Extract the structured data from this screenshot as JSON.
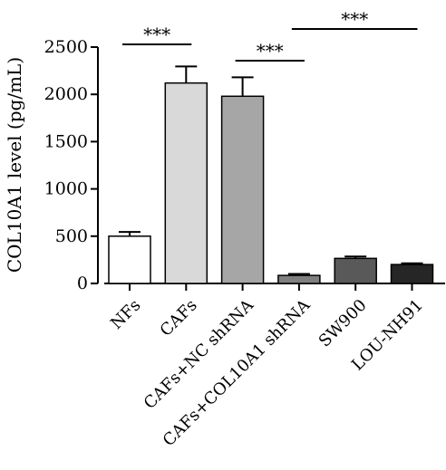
{
  "chart_data": {
    "type": "bar",
    "ylabel": "COL10A1 level (pg/mL)",
    "xlabel": "",
    "ylim": [
      0,
      2500
    ],
    "yticks": [
      0,
      500,
      1000,
      1500,
      2000,
      2500
    ],
    "ytick_labels": [
      "0",
      "500",
      "1000",
      "1500",
      "2000",
      "2500"
    ],
    "categories": [
      "NFs",
      "CAFs",
      "CAFs+NC shRNA",
      "CAFs+COL10A1 shRNA",
      "SW900",
      "LOU-NH91"
    ],
    "values": [
      500,
      2120,
      1980,
      85,
      265,
      200
    ],
    "error_upper": [
      545,
      2295,
      2180,
      100,
      285,
      213
    ],
    "bar_colors": [
      "#ffffff",
      "#d9d9d9",
      "#a6a6a6",
      "#7f7f7f",
      "#595959",
      "#262626"
    ],
    "significance": [
      {
        "from": 0,
        "to": 1,
        "label": "***"
      },
      {
        "from": 3,
        "to": 5,
        "label": "***"
      },
      {
        "from": 2,
        "to": 3,
        "label": "***"
      }
    ],
    "grid": false
  }
}
